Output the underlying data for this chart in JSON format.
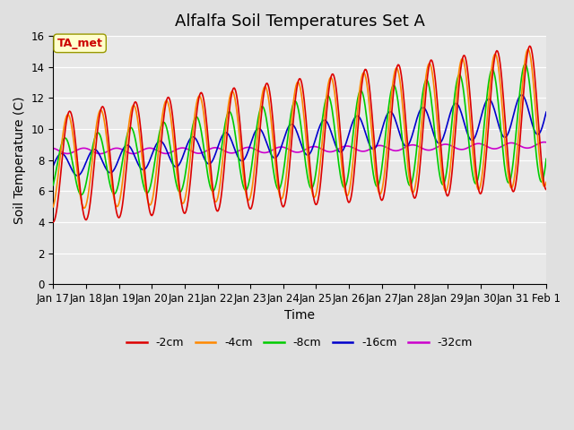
{
  "title": "Alfalfa Soil Temperatures Set A",
  "xlabel": "Time",
  "ylabel": "Soil Temperature (C)",
  "ylim": [
    0,
    16
  ],
  "yticks": [
    0,
    2,
    4,
    6,
    8,
    10,
    12,
    14,
    16
  ],
  "colors": {
    "-2cm": "#dd0000",
    "-4cm": "#ff8800",
    "-8cm": "#00cc00",
    "-16cm": "#0000cc",
    "-32cm": "#cc00cc"
  },
  "legend_labels": [
    "-2cm",
    "-4cm",
    "-8cm",
    "-16cm",
    "-32cm"
  ],
  "annotation_text": "TA_met",
  "annotation_color": "#cc0000",
  "annotation_bg": "#ffffcc",
  "background_color": "#e0e0e0",
  "plot_bg": "#e8e8e8",
  "title_fontsize": 13,
  "label_fontsize": 10,
  "tick_fontsize": 8.5,
  "x_start": 0,
  "x_end": 15,
  "xtick_positions": [
    0,
    1,
    2,
    3,
    4,
    5,
    6,
    7,
    8,
    9,
    10,
    11,
    12,
    13,
    14,
    15
  ],
  "xtick_labels": [
    "Jan 17",
    "Jan 18",
    "Jan 19",
    "Jan 20",
    "Jan 21",
    "Jan 22",
    "Jan 23",
    "Jan 24",
    "Jan 25",
    "Jan 26",
    "Jan 27",
    "Jan 28",
    "Jan 29",
    "Jan 30",
    "Jan 31",
    "Feb 1"
  ]
}
